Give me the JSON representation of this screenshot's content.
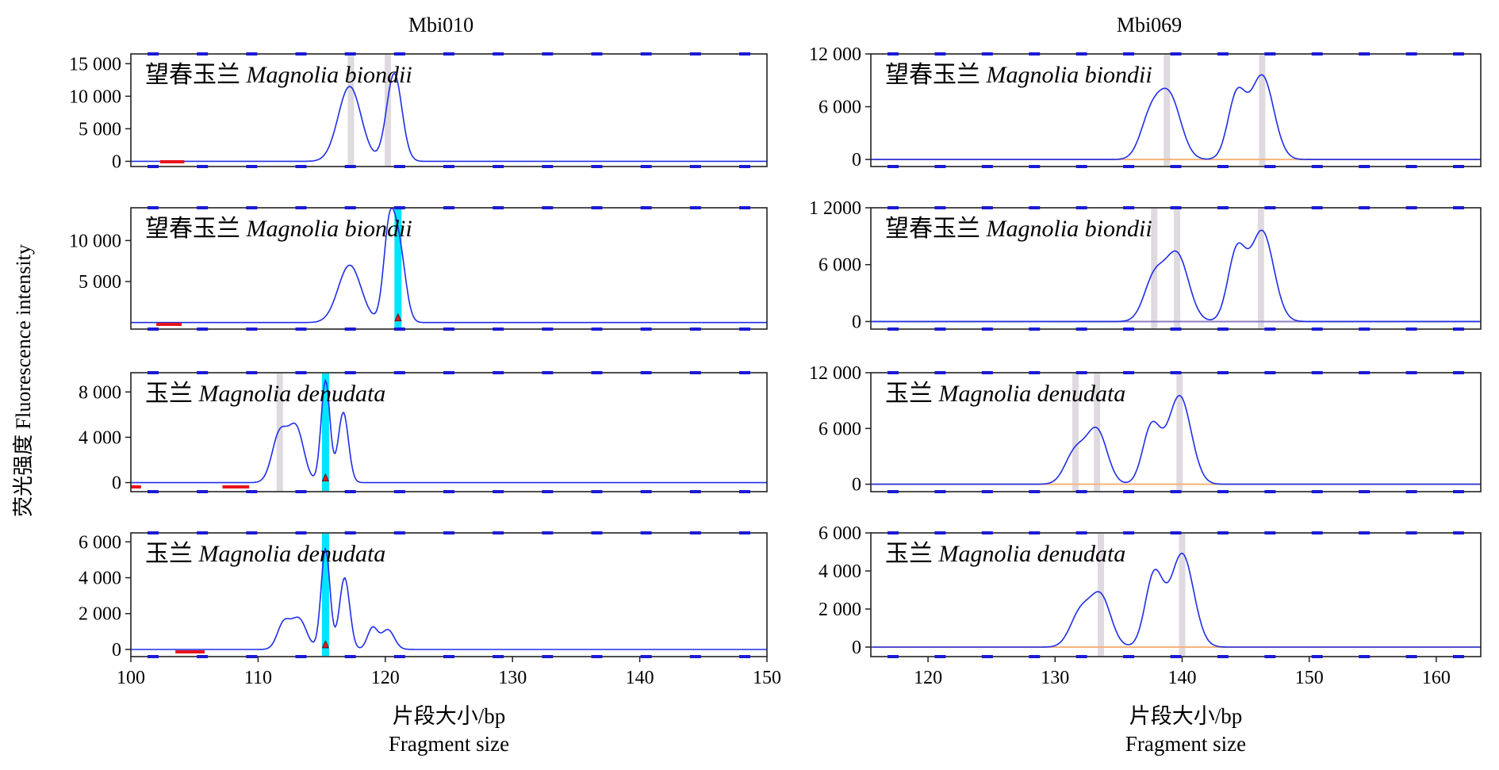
{
  "chart_data": [
    {
      "type": "line",
      "column_title": "Mbi010",
      "panel_label": {
        "cn": "望春玉兰",
        "latin": "Magnolia biondii"
      },
      "xlim": [
        100,
        150
      ],
      "ylim": [
        -800,
        16500
      ],
      "yticks": [
        0,
        5000,
        10000,
        15000
      ],
      "yticklabels": [
        "0",
        "5 000",
        "10 000",
        "15 000"
      ],
      "peaks": [
        {
          "x": 117.2,
          "y": 11500,
          "w": 0.9
        },
        {
          "x": 120.7,
          "y": 13500,
          "w": 0.6
        }
      ],
      "highlights": [
        {
          "x": 117.3,
          "color": "#d9d3db"
        },
        {
          "x": 120.2,
          "color": "#d9d3db"
        }
      ],
      "red_marks": [
        [
          102.3,
          104.2
        ]
      ]
    },
    {
      "type": "line",
      "column_title": "Mbi010",
      "panel_label": {
        "cn": "望春玉兰",
        "latin": "Magnolia biondii"
      },
      "xlim": [
        100,
        150
      ],
      "ylim": [
        -800,
        14000
      ],
      "yticks": [
        5000,
        10000
      ],
      "yticklabels": [
        "5 000",
        "10 000"
      ],
      "peaks": [
        {
          "x": 117.2,
          "y": 7000,
          "w": 0.9
        },
        {
          "x": 120.3,
          "y": 10800,
          "w": 0.45
        },
        {
          "x": 121.1,
          "y": 8600,
          "w": 0.5
        }
      ],
      "highlights": [
        {
          "x": 121.0,
          "color": "#00e5ff"
        }
      ],
      "markers": [
        121.0
      ],
      "red_marks": [
        [
          102.0,
          104.0
        ]
      ]
    },
    {
      "type": "line",
      "column_title": "Mbi010",
      "panel_label": {
        "cn": "玉兰",
        "latin": "Magnolia denudata"
      },
      "xlim": [
        100,
        150
      ],
      "ylim": [
        -800,
        9700
      ],
      "yticks": [
        0,
        4000,
        8000
      ],
      "yticklabels": [
        "0",
        "4 000",
        "8 000"
      ],
      "peaks": [
        {
          "x": 111.7,
          "y": 4300,
          "w": 0.6
        },
        {
          "x": 113.0,
          "y": 4700,
          "w": 0.6
        },
        {
          "x": 115.3,
          "y": 9000,
          "w": 0.35
        },
        {
          "x": 116.7,
          "y": 6200,
          "w": 0.4
        }
      ],
      "highlights": [
        {
          "x": 111.7,
          "color": "#d9d3db"
        },
        {
          "x": 115.3,
          "color": "#00e5ff"
        }
      ],
      "markers": [
        115.3
      ],
      "red_marks": [
        [
          100.0,
          100.8
        ],
        [
          107.2,
          109.3
        ]
      ]
    },
    {
      "type": "line",
      "column_title": "Mbi010",
      "panel_label": {
        "cn": "玉兰",
        "latin": "Magnolia denudata"
      },
      "xlim": [
        100,
        150
      ],
      "ylim": [
        -400,
        6500
      ],
      "yticks": [
        0,
        2000,
        4000,
        6000
      ],
      "yticklabels": [
        "0",
        "2 000",
        "4 000",
        "6 000"
      ],
      "xticks": [
        100,
        110,
        120,
        130,
        140,
        150
      ],
      "peaks": [
        {
          "x": 112.0,
          "y": 1400,
          "w": 0.5
        },
        {
          "x": 113.2,
          "y": 1700,
          "w": 0.6
        },
        {
          "x": 115.3,
          "y": 5600,
          "w": 0.35
        },
        {
          "x": 116.8,
          "y": 4000,
          "w": 0.4
        },
        {
          "x": 119.0,
          "y": 1200,
          "w": 0.4
        },
        {
          "x": 120.2,
          "y": 1100,
          "w": 0.5
        }
      ],
      "highlights": [
        {
          "x": 115.3,
          "color": "#00e5ff"
        }
      ],
      "markers": [
        115.3
      ],
      "red_marks": [
        [
          103.5,
          105.8
        ]
      ]
    },
    {
      "type": "line",
      "column_title": "Mbi069",
      "panel_label": {
        "cn": "望春玉兰",
        "latin": "Magnolia biondii"
      },
      "xlim": [
        115.5,
        163.5
      ],
      "ylim": [
        -800,
        12000
      ],
      "yticks": [
        0,
        6000,
        12000
      ],
      "yticklabels": [
        "0",
        "6 000",
        "12 000"
      ],
      "peaks": [
        {
          "x": 137.5,
          "y": 4500,
          "w": 0.8
        },
        {
          "x": 139.0,
          "y": 7000,
          "w": 0.9
        },
        {
          "x": 144.3,
          "y": 7200,
          "w": 0.7
        },
        {
          "x": 146.3,
          "y": 9500,
          "w": 0.9
        }
      ],
      "highlights": [
        {
          "x": 138.8,
          "color": "#d9d3db"
        },
        {
          "x": 146.3,
          "color": "#d9d3db"
        }
      ],
      "baseline_color": "#f5b37a"
    },
    {
      "type": "line",
      "column_title": "Mbi069",
      "panel_label": {
        "cn": "望春玉兰",
        "latin": "Magnolia biondii"
      },
      "xlim": [
        115.5,
        163.5
      ],
      "ylim": [
        -800,
        12000
      ],
      "yticks": [
        0,
        6000,
        12000
      ],
      "yticklabels": [
        "0",
        "6 000",
        "1 2000"
      ],
      "peaks": [
        {
          "x": 137.8,
          "y": 4500,
          "w": 0.8
        },
        {
          "x": 139.6,
          "y": 7000,
          "w": 0.9
        },
        {
          "x": 144.3,
          "y": 7300,
          "w": 0.7
        },
        {
          "x": 146.3,
          "y": 9500,
          "w": 0.9
        }
      ],
      "highlights": [
        {
          "x": 137.8,
          "color": "#d9d3db"
        },
        {
          "x": 139.6,
          "color": "#d9d3db"
        },
        {
          "x": 146.2,
          "color": "#d9d3db"
        }
      ],
      "baseline_color": "#8e7cc3"
    },
    {
      "type": "line",
      "column_title": "Mbi069",
      "panel_label": {
        "cn": "玉兰",
        "latin": "Magnolia denudata"
      },
      "xlim": [
        115.5,
        163.5
      ],
      "ylim": [
        -800,
        12000
      ],
      "yticks": [
        0,
        6000,
        12000
      ],
      "yticklabels": [
        "0",
        "6 000",
        "12 000"
      ],
      "peaks": [
        {
          "x": 131.6,
          "y": 3500,
          "w": 0.8
        },
        {
          "x": 133.3,
          "y": 5700,
          "w": 0.8
        },
        {
          "x": 137.6,
          "y": 6200,
          "w": 0.7
        },
        {
          "x": 139.8,
          "y": 9500,
          "w": 0.9
        }
      ],
      "highlights": [
        {
          "x": 131.6,
          "color": "#d9d3db"
        },
        {
          "x": 133.3,
          "color": "#d9d3db"
        },
        {
          "x": 139.8,
          "color": "#d9d3db"
        }
      ],
      "baseline_color": "#f5b37a"
    },
    {
      "type": "line",
      "column_title": "Mbi069",
      "panel_label": {
        "cn": "玉兰",
        "latin": "Magnolia denudata"
      },
      "xlim": [
        115.5,
        163.5
      ],
      "ylim": [
        -500,
        6000
      ],
      "yticks": [
        0,
        2000,
        4000,
        6000
      ],
      "yticklabels": [
        "0",
        "2 000",
        "4 000",
        "6 000"
      ],
      "xticks": [
        120,
        130,
        140,
        150,
        160
      ],
      "peaks": [
        {
          "x": 132.0,
          "y": 1800,
          "w": 0.8
        },
        {
          "x": 133.6,
          "y": 2600,
          "w": 0.8
        },
        {
          "x": 137.8,
          "y": 3800,
          "w": 0.7
        },
        {
          "x": 140.0,
          "y": 4900,
          "w": 0.9
        }
      ],
      "highlights": [
        {
          "x": 133.6,
          "color": "#d9d3db"
        },
        {
          "x": 140.0,
          "color": "#d9d3db"
        }
      ],
      "baseline_color": "#f5b37a"
    }
  ],
  "axis_labels": {
    "y_label": "荧光强度 Fluorescence intensity",
    "x_label_cn": "片段大小/bp",
    "x_label_en": "Fragment size"
  },
  "colors": {
    "trace": "#1f2ee8",
    "frame_marker": "#1a1ad6",
    "highlight_grey": "#d9d3db",
    "highlight_cyan": "#00e5ff",
    "red_mark": "#e8141c",
    "marker_fill": "#d81e1e"
  }
}
